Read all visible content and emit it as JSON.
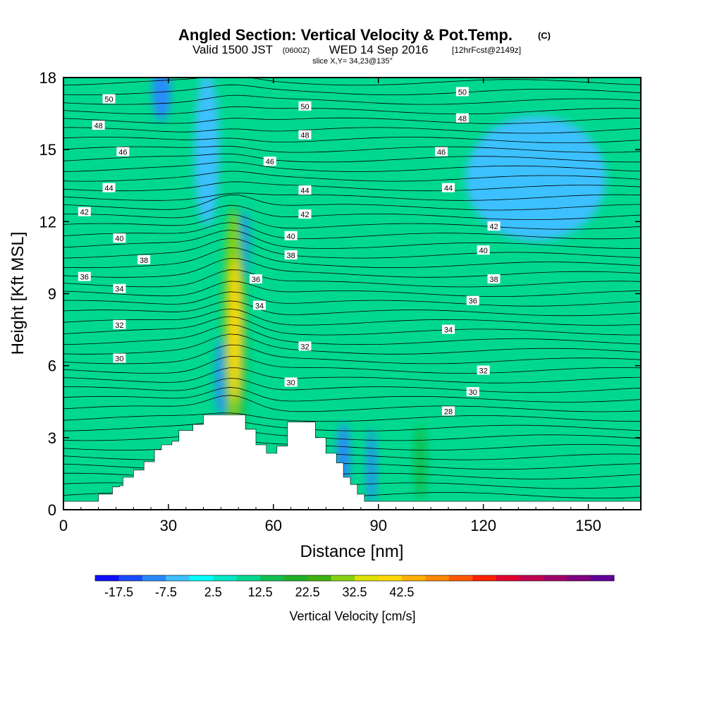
{
  "chart_data": {
    "type": "contour",
    "title": "Angled Section: Vertical Velocity & Pot.Temp.",
    "title_suffix": "(C)",
    "subtitle_valid": "Valid 1500 JST",
    "subtitle_utc": "(0600Z)",
    "subtitle_date": "WED 14 Sep 2016",
    "subtitle_fcst": "[12hrFcst@2149z]",
    "slice_info": "slice X,Y= 34,23@135°",
    "xlabel": "Distance [nm]",
    "ylabel": "Height [Kft MSL]",
    "xlim": [
      0,
      165
    ],
    "ylim": [
      0,
      18
    ],
    "x_ticks": [
      "0",
      "30",
      "60",
      "90",
      "120",
      "150"
    ],
    "y_ticks": [
      "0",
      "3",
      "6",
      "9",
      "12",
      "15",
      "18"
    ],
    "colorbar": {
      "label": "Vertical Velocity [cm/s]",
      "tick_labels": [
        "-17.5",
        "-7.5",
        "2.5",
        "12.5",
        "22.5",
        "32.5",
        "42.5"
      ],
      "colors": [
        "#1010ff",
        "#1a4cff",
        "#2a88ff",
        "#3cc0ff",
        "#00ffff",
        "#00e8c8",
        "#00d890",
        "#10c050",
        "#20b028",
        "#40b010",
        "#88d010",
        "#e0e000",
        "#ffd800",
        "#ffb000",
        "#ff8800",
        "#ff5800",
        "#ff2000",
        "#e00030",
        "#c00050",
        "#a00068",
        "#800080",
        "#600098"
      ]
    },
    "theta_labels": [
      {
        "text": "50",
        "x": 13,
        "y": 17.1
      },
      {
        "text": "48",
        "x": 10,
        "y": 16.0
      },
      {
        "text": "46",
        "x": 17,
        "y": 14.9
      },
      {
        "text": "44",
        "x": 13,
        "y": 13.4
      },
      {
        "text": "42",
        "x": 6,
        "y": 12.4
      },
      {
        "text": "40",
        "x": 16,
        "y": 11.3
      },
      {
        "text": "38",
        "x": 23,
        "y": 10.4
      },
      {
        "text": "36",
        "x": 6,
        "y": 9.7
      },
      {
        "text": "34",
        "x": 16,
        "y": 9.2
      },
      {
        "text": "32",
        "x": 16,
        "y": 7.7
      },
      {
        "text": "30",
        "x": 16,
        "y": 6.3
      },
      {
        "text": "50",
        "x": 69,
        "y": 16.8
      },
      {
        "text": "48",
        "x": 69,
        "y": 15.6
      },
      {
        "text": "46",
        "x": 59,
        "y": 14.5
      },
      {
        "text": "44",
        "x": 69,
        "y": 13.3
      },
      {
        "text": "42",
        "x": 69,
        "y": 12.3
      },
      {
        "text": "40",
        "x": 65,
        "y": 11.4
      },
      {
        "text": "38",
        "x": 65,
        "y": 10.6
      },
      {
        "text": "36",
        "x": 55,
        "y": 9.6
      },
      {
        "text": "34",
        "x": 56,
        "y": 8.5
      },
      {
        "text": "32",
        "x": 69,
        "y": 6.8
      },
      {
        "text": "30",
        "x": 65,
        "y": 5.3
      },
      {
        "text": "50",
        "x": 114,
        "y": 17.4
      },
      {
        "text": "48",
        "x": 114,
        "y": 16.3
      },
      {
        "text": "46",
        "x": 108,
        "y": 14.9
      },
      {
        "text": "44",
        "x": 110,
        "y": 13.4
      },
      {
        "text": "42",
        "x": 123,
        "y": 11.8
      },
      {
        "text": "40",
        "x": 120,
        "y": 10.8
      },
      {
        "text": "38",
        "x": 123,
        "y": 9.6
      },
      {
        "text": "36",
        "x": 117,
        "y": 8.7
      },
      {
        "text": "34",
        "x": 110,
        "y": 7.5
      },
      {
        "text": "32",
        "x": 120,
        "y": 5.8
      },
      {
        "text": "30",
        "x": 117,
        "y": 4.9
      },
      {
        "text": "28",
        "x": 110,
        "y": 4.1
      }
    ],
    "terrain": [
      [
        0,
        0.35
      ],
      [
        10,
        0.35
      ],
      [
        10,
        0.65
      ],
      [
        14,
        0.65
      ],
      [
        14,
        0.95
      ],
      [
        16,
        0.95
      ],
      [
        16,
        1.0
      ],
      [
        17,
        1.0
      ],
      [
        17,
        1.35
      ],
      [
        20,
        1.35
      ],
      [
        20,
        1.65
      ],
      [
        23,
        1.65
      ],
      [
        23,
        2.0
      ],
      [
        26,
        2.0
      ],
      [
        26,
        2.5
      ],
      [
        28,
        2.5
      ],
      [
        28,
        2.7
      ],
      [
        31,
        2.7
      ],
      [
        31,
        2.85
      ],
      [
        33,
        2.85
      ],
      [
        33,
        3.3
      ],
      [
        37,
        3.3
      ],
      [
        37,
        3.55
      ],
      [
        40,
        3.55
      ],
      [
        40,
        3.95
      ],
      [
        52,
        3.95
      ],
      [
        52,
        3.35
      ],
      [
        55,
        3.35
      ],
      [
        55,
        2.7
      ],
      [
        58,
        2.7
      ],
      [
        58,
        2.35
      ],
      [
        61,
        2.35
      ],
      [
        61,
        2.65
      ],
      [
        64,
        2.65
      ],
      [
        64,
        3.65
      ],
      [
        72,
        3.65
      ],
      [
        72,
        3.0
      ],
      [
        75,
        3.0
      ],
      [
        75,
        2.35
      ],
      [
        78,
        2.35
      ],
      [
        78,
        1.95
      ],
      [
        80,
        1.95
      ],
      [
        80,
        1.35
      ],
      [
        82,
        1.35
      ],
      [
        82,
        1.05
      ],
      [
        84,
        1.05
      ],
      [
        84,
        0.65
      ],
      [
        86,
        0.65
      ],
      [
        86,
        0.35
      ],
      [
        165,
        0.35
      ]
    ],
    "velocity_features": [
      {
        "x": 49,
        "y": 7.5,
        "rx": 1.6,
        "ry": 3.0,
        "value": 42
      },
      {
        "x": 48.5,
        "y": 8.0,
        "rx": 2.5,
        "ry": 4.5,
        "value": 30
      },
      {
        "x": 49,
        "y": 7.2,
        "rx": 3.5,
        "ry": 5.5,
        "value": 15
      },
      {
        "x": 45,
        "y": 5.5,
        "rx": 1.5,
        "ry": 1.6,
        "value": -10
      },
      {
        "x": 52,
        "y": 11.0,
        "rx": 1.0,
        "ry": 1.5,
        "value": -12
      },
      {
        "x": 28,
        "y": 17.4,
        "rx": 2.5,
        "ry": 1.2,
        "value": -12
      },
      {
        "x": 41,
        "y": 15.0,
        "rx": 3.5,
        "ry": 3.2,
        "value": -6
      },
      {
        "x": 72,
        "y": 17.0,
        "rx": 3.0,
        "ry": 1.6,
        "value": 10
      },
      {
        "x": 27,
        "y": 11.9,
        "rx": 2.0,
        "ry": 1.6,
        "value": 10
      },
      {
        "x": 102,
        "y": 2.0,
        "rx": 1.8,
        "ry": 1.6,
        "value": 14
      },
      {
        "x": 88,
        "y": 1.8,
        "rx": 1.2,
        "ry": 1.6,
        "value": -8
      },
      {
        "x": 135,
        "y": 13.8,
        "rx": 20.0,
        "ry": 2.6,
        "value": -4
      },
      {
        "x": 18,
        "y": 8.0,
        "rx": 1.5,
        "ry": 1.7,
        "value": 9
      },
      {
        "x": 33,
        "y": 2.7,
        "rx": 2.0,
        "ry": 1.0,
        "value": 9
      },
      {
        "x": 80,
        "y": 2.2,
        "rx": 1.8,
        "ry": 1.4,
        "value": -8
      }
    ]
  }
}
